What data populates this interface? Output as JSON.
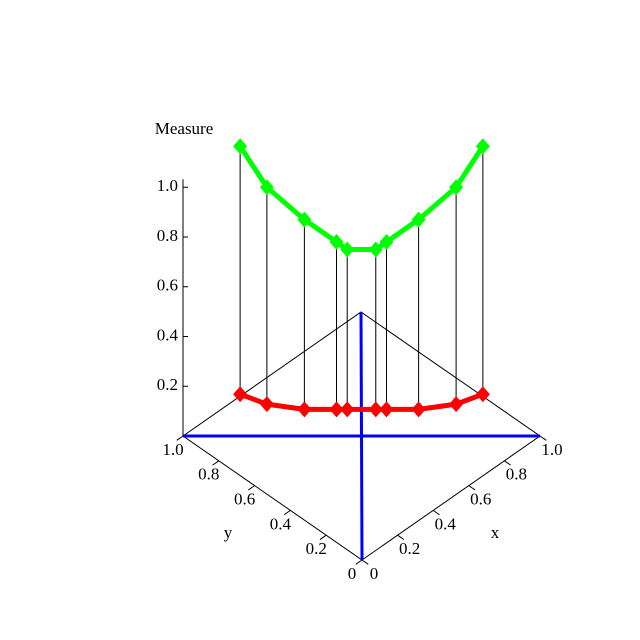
{
  "chart_data": {
    "type": "line3d",
    "z_label": "Measure",
    "x_label": "x",
    "y_label": "y",
    "xlim": [
      0,
      1
    ],
    "ylim": [
      0,
      1
    ],
    "zlim": [
      0,
      1
    ],
    "xticks": [
      0,
      0.2,
      0.4,
      0.6,
      0.8,
      {
        "value": 1,
        "label": "1.0"
      }
    ],
    "yticks": [
      0,
      0.2,
      0.4,
      0.6,
      0.8,
      {
        "value": 1,
        "label": "1.0"
      }
    ],
    "zticks": [
      0.2,
      0.4,
      0.6,
      0.8,
      {
        "value": 1,
        "label": "1.0"
      }
    ],
    "drop_lines": true,
    "base_color": "#0000ff",
    "series": [
      {
        "color": "#00ff00",
        "x": [
          0.16,
          0.235,
          0.34,
          0.43,
          0.46,
          0.54,
          0.57,
          0.66,
          0.765,
          0.84
        ],
        "y": [
          0.84,
          0.765,
          0.66,
          0.57,
          0.54,
          0.46,
          0.43,
          0.34,
          0.235,
          0.16
        ],
        "values": [
          1.165,
          1.0,
          0.87,
          0.78,
          0.75,
          0.75,
          0.78,
          0.87,
          1.0,
          1.165
        ]
      },
      {
        "color": "#ff0000",
        "x": [
          0.16,
          0.235,
          0.34,
          0.43,
          0.46,
          0.54,
          0.57,
          0.66,
          0.765,
          0.84
        ],
        "y": [
          0.84,
          0.765,
          0.66,
          0.57,
          0.54,
          0.46,
          0.43,
          0.34,
          0.235,
          0.16
        ],
        "values": [
          0.168,
          0.128,
          0.107,
          0.107,
          0.107,
          0.107,
          0.107,
          0.107,
          0.128,
          0.168
        ]
      }
    ]
  }
}
